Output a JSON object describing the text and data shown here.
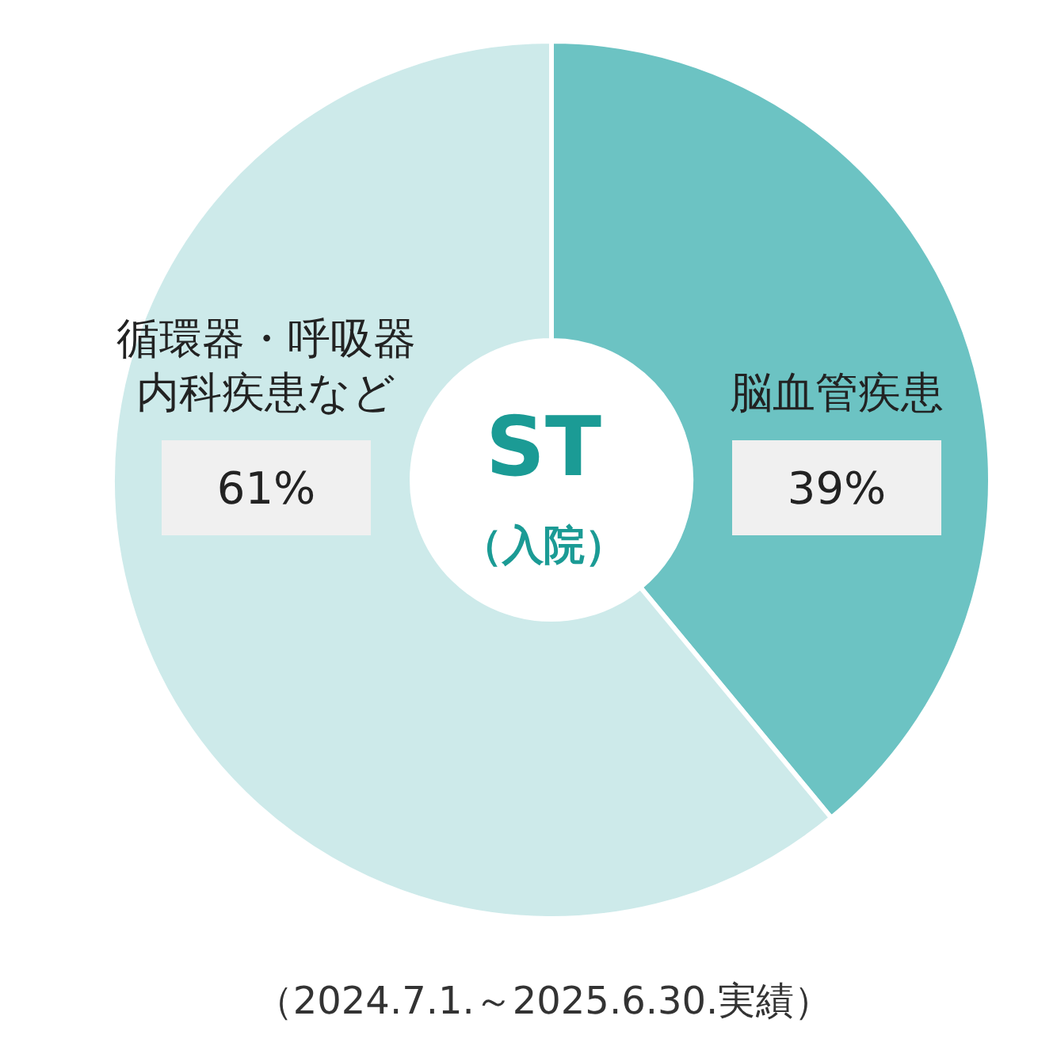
{
  "chart_data": {
    "type": "donut",
    "categories": [
      "脳血管疾患",
      "循環器・呼吸器内科疾患など"
    ],
    "values": [
      39,
      61
    ],
    "colors": [
      "#6cc3c3",
      "#cdeaea"
    ],
    "value_labels": [
      "39%",
      "61%"
    ],
    "annotations": [
      "ST",
      "（入院）",
      "（2024.7.1.～2025.6.30.実績）"
    ],
    "legend": false
  }
}
